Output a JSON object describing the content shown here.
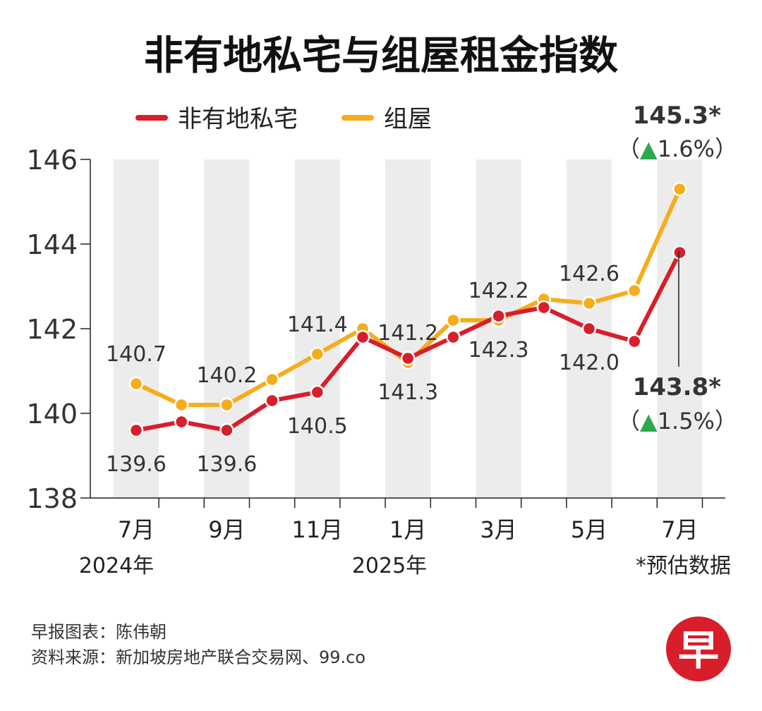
{
  "chart_data": {
    "type": "line",
    "title": "非有地私宅与组屋租金指数",
    "categories": [
      "2024-07",
      "2024-08",
      "2024-09",
      "2024-10",
      "2024-11",
      "2024-12",
      "2025-01",
      "2025-02",
      "2025-03",
      "2025-04",
      "2025-05",
      "2025-06",
      "2025-07"
    ],
    "x_tick_labels": [
      "7月",
      "",
      "9月",
      "",
      "11月",
      "",
      "1月",
      "",
      "3月",
      "",
      "5月",
      "",
      "7月"
    ],
    "year_labels": [
      {
        "index": 0,
        "label": "2024年"
      },
      {
        "index": 6,
        "label": "2025年"
      }
    ],
    "ylim": [
      138,
      146
    ],
    "yticks": [
      138,
      140,
      142,
      144,
      146
    ],
    "series": [
      {
        "name": "非有地私宅",
        "color": "#d81e2a",
        "values": [
          139.6,
          139.8,
          139.6,
          140.3,
          140.5,
          141.8,
          141.3,
          141.8,
          142.3,
          142.5,
          142.0,
          141.7,
          143.8
        ]
      },
      {
        "name": "组屋",
        "color": "#f6ad1b",
        "values": [
          140.7,
          140.2,
          140.2,
          140.8,
          141.4,
          142.0,
          141.2,
          142.2,
          142.2,
          142.7,
          142.6,
          142.9,
          145.3
        ]
      }
    ],
    "data_labels": [
      {
        "series": 1,
        "index": 0,
        "text": "140.7",
        "pos": "above"
      },
      {
        "series": 0,
        "index": 0,
        "text": "139.6",
        "pos": "below"
      },
      {
        "series": 1,
        "index": 2,
        "text": "140.2",
        "pos": "above"
      },
      {
        "series": 0,
        "index": 2,
        "text": "139.6",
        "pos": "below"
      },
      {
        "series": 1,
        "index": 4,
        "text": "141.4",
        "pos": "above"
      },
      {
        "series": 0,
        "index": 4,
        "text": "140.5",
        "pos": "below"
      },
      {
        "series": 1,
        "index": 6,
        "text": "141.2",
        "pos": "above"
      },
      {
        "series": 0,
        "index": 6,
        "text": "141.3",
        "pos": "below"
      },
      {
        "series": 1,
        "index": 8,
        "text": "142.2",
        "pos": "above"
      },
      {
        "series": 0,
        "index": 8,
        "text": "142.3",
        "pos": "below"
      },
      {
        "series": 1,
        "index": 10,
        "text": "142.6",
        "pos": "above"
      },
      {
        "series": 0,
        "index": 10,
        "text": "142.0",
        "pos": "below"
      }
    ],
    "callouts": [
      {
        "series": 1,
        "value": "145.3*",
        "change_open": "（",
        "arrow": "▲",
        "change": "1.6%",
        "change_close": "）",
        "arrow_color": "#2ea84a"
      },
      {
        "series": 0,
        "value": "143.8*",
        "change_open": "（",
        "arrow": "▲",
        "change": "1.5%",
        "change_close": "）",
        "arrow_color": "#2ea84a"
      }
    ],
    "note": "*预估数据",
    "legend": "top-left",
    "band_color": "#ececec"
  },
  "footer": {
    "credit": "早报图表：陈伟朝",
    "source": "资料来源：新加坡房地产联合交易网、99.co"
  },
  "logo": {
    "char": "早",
    "color": "#d81e2a"
  }
}
